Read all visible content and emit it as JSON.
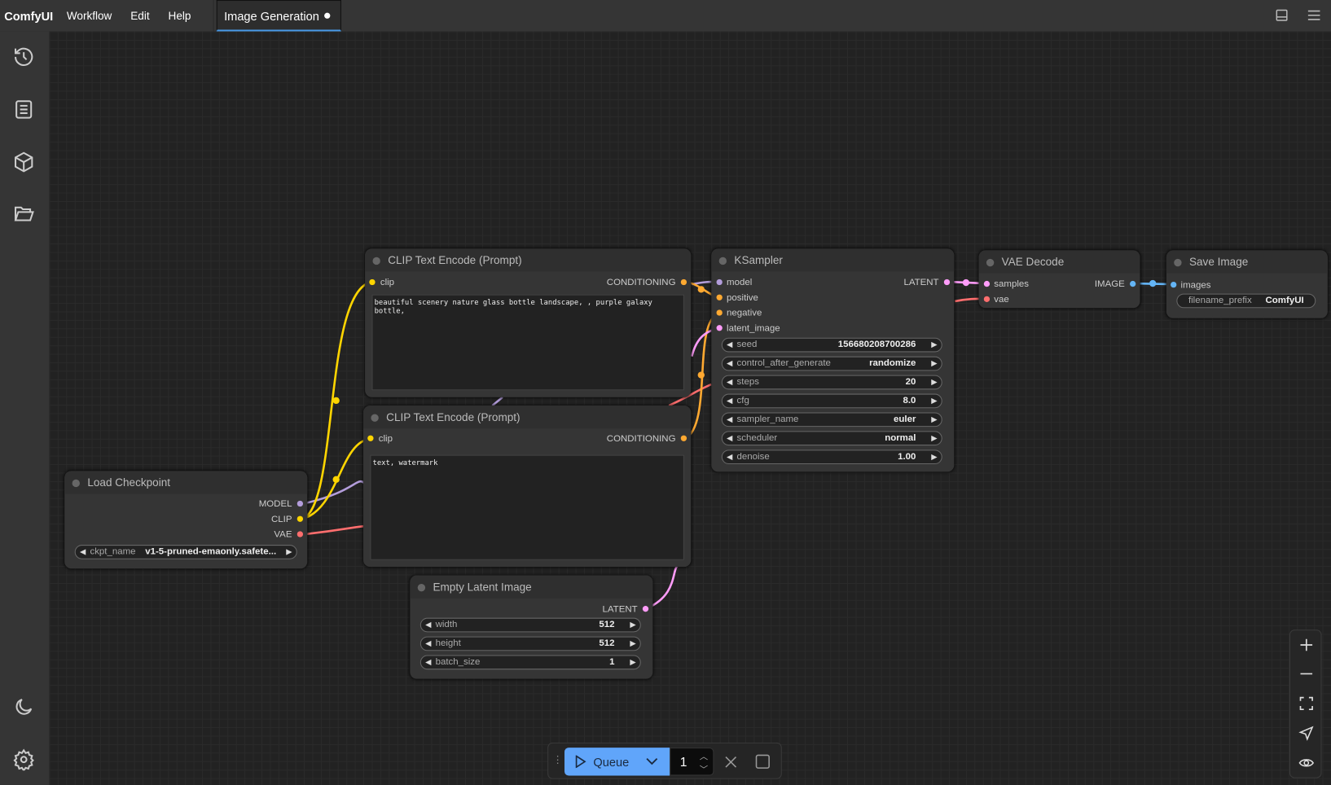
{
  "topbar": {
    "brand": "ComfyUI",
    "menus": [
      "Workflow",
      "Edit",
      "Help"
    ],
    "active_tab": "Image Generation",
    "icons": [
      "toggle-panel-icon",
      "hamburger-menu-icon"
    ]
  },
  "sidebar": {
    "icons": [
      "history-icon",
      "node-library-icon",
      "model-library-icon",
      "workflows-folder-icon",
      "theme-moon-icon",
      "settings-gear-icon"
    ]
  },
  "nodes": {
    "load_checkpoint": {
      "title": "Load Checkpoint",
      "outputs": [
        "MODEL",
        "CLIP",
        "VAE"
      ],
      "widget": {
        "label": "ckpt_name",
        "value": "v1-5-pruned-emaonly.safete..."
      }
    },
    "clip_pos": {
      "title": "CLIP Text Encode (Prompt)",
      "input": "clip",
      "output": "CONDITIONING",
      "text": "beautiful scenery nature glass bottle landscape, , purple galaxy bottle,"
    },
    "clip_neg": {
      "title": "CLIP Text Encode (Prompt)",
      "input": "clip",
      "output": "CONDITIONING",
      "text": "text, watermark"
    },
    "ksampler": {
      "title": "KSampler",
      "inputs": [
        "model",
        "positive",
        "negative",
        "latent_image"
      ],
      "output": "LATENT",
      "widgets": [
        {
          "label": "seed",
          "value": "156680208700286"
        },
        {
          "label": "control_after_generate",
          "value": "randomize"
        },
        {
          "label": "steps",
          "value": "20"
        },
        {
          "label": "cfg",
          "value": "8.0"
        },
        {
          "label": "sampler_name",
          "value": "euler"
        },
        {
          "label": "scheduler",
          "value": "normal"
        },
        {
          "label": "denoise",
          "value": "1.00"
        }
      ]
    },
    "vae_decode": {
      "title": "VAE Decode",
      "inputs": [
        "samples",
        "vae"
      ],
      "output": "IMAGE"
    },
    "save_image": {
      "title": "Save Image",
      "input": "images",
      "widget": {
        "label": "filename_prefix",
        "value": "ComfyUI"
      }
    },
    "empty_latent": {
      "title": "Empty Latent Image",
      "output": "LATENT",
      "widgets": [
        {
          "label": "width",
          "value": "512"
        },
        {
          "label": "height",
          "value": "512"
        },
        {
          "label": "batch_size",
          "value": "1"
        }
      ]
    }
  },
  "colors": {
    "model": "#b39ddb",
    "clip": "#ffd500",
    "vae": "#ff6e6e",
    "conditioning": "#ffa931",
    "latent": "#ff9cf9",
    "image": "#64b5f6",
    "accent": "#4a9be8",
    "queue": "#60a5fa"
  },
  "queue": {
    "label": "Queue",
    "count": "1"
  },
  "zoom_controls": [
    "zoom-in-icon",
    "zoom-out-icon",
    "fit-view-icon",
    "locate-icon",
    "toggle-links-eye-icon"
  ]
}
